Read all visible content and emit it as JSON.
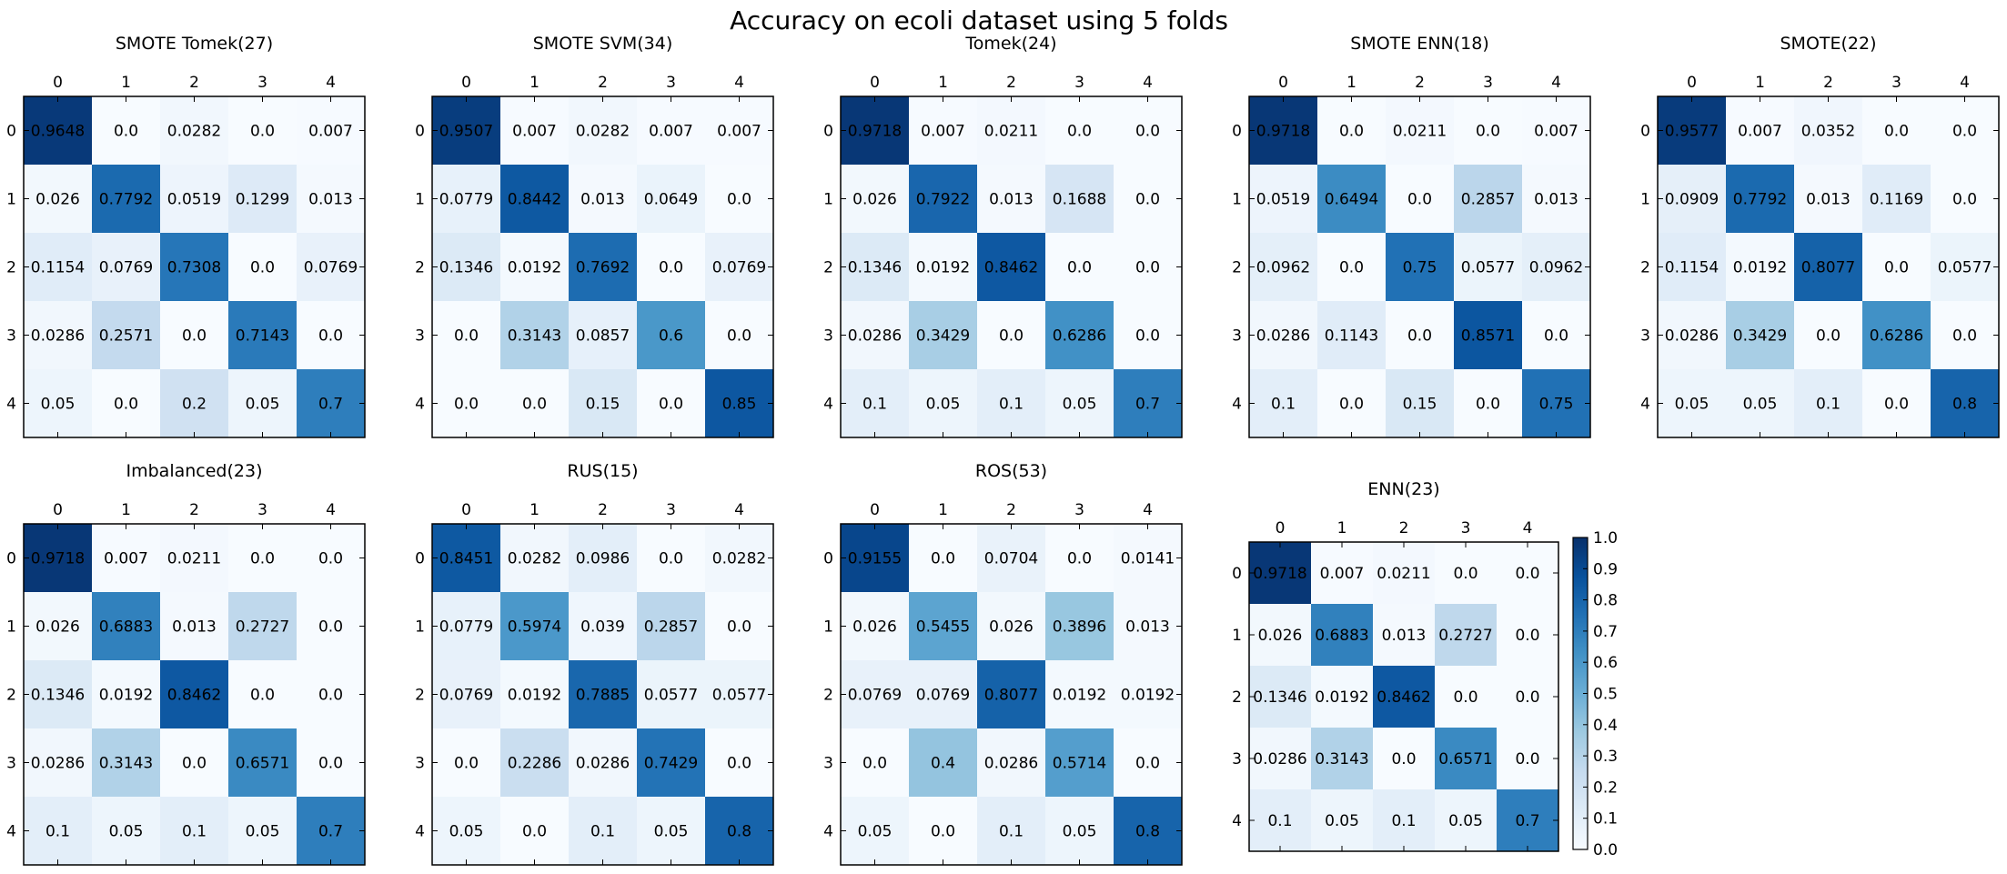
{
  "figure": {
    "title": "Accuracy on ecoli dataset using 5 folds"
  },
  "colormap": {
    "name": "Blues",
    "stops": [
      "#f7fbff",
      "#deebf7",
      "#c6dbef",
      "#9ecae1",
      "#6baed6",
      "#4292c6",
      "#2171b5",
      "#08519c",
      "#08306b"
    ]
  },
  "chart_data": [
    {
      "type": "heatmap",
      "title": "SMOTE Tomek(27)",
      "x_ticks": [
        "0",
        "1",
        "2",
        "3",
        "4"
      ],
      "y_ticks": [
        "0",
        "1",
        "2",
        "3",
        "4"
      ],
      "values": [
        [
          "0.9648",
          "0.0",
          "0.0282",
          "0.0",
          "0.007"
        ],
        [
          "0.026",
          "0.7792",
          "0.0519",
          "0.1299",
          "0.013"
        ],
        [
          "0.1154",
          "0.0769",
          "0.7308",
          "0.0",
          "0.0769"
        ],
        [
          "0.0286",
          "0.2571",
          "0.0",
          "0.7143",
          "0.0"
        ],
        [
          "0.05",
          "0.0",
          "0.2",
          "0.05",
          "0.7"
        ]
      ]
    },
    {
      "type": "heatmap",
      "title": "SMOTE SVM(34)",
      "x_ticks": [
        "0",
        "1",
        "2",
        "3",
        "4"
      ],
      "y_ticks": [
        "0",
        "1",
        "2",
        "3",
        "4"
      ],
      "values": [
        [
          "0.9507",
          "0.007",
          "0.0282",
          "0.007",
          "0.007"
        ],
        [
          "0.0779",
          "0.8442",
          "0.013",
          "0.0649",
          "0.0"
        ],
        [
          "0.1346",
          "0.0192",
          "0.7692",
          "0.0",
          "0.0769"
        ],
        [
          "0.0",
          "0.3143",
          "0.0857",
          "0.6",
          "0.0"
        ],
        [
          "0.0",
          "0.0",
          "0.15",
          "0.0",
          "0.85"
        ]
      ]
    },
    {
      "type": "heatmap",
      "title": "Tomek(24)",
      "x_ticks": [
        "0",
        "1",
        "2",
        "3",
        "4"
      ],
      "y_ticks": [
        "0",
        "1",
        "2",
        "3",
        "4"
      ],
      "values": [
        [
          "0.9718",
          "0.007",
          "0.0211",
          "0.0",
          "0.0"
        ],
        [
          "0.026",
          "0.7922",
          "0.013",
          "0.1688",
          "0.0"
        ],
        [
          "0.1346",
          "0.0192",
          "0.8462",
          "0.0",
          "0.0"
        ],
        [
          "0.0286",
          "0.3429",
          "0.0",
          "0.6286",
          "0.0"
        ],
        [
          "0.1",
          "0.05",
          "0.1",
          "0.05",
          "0.7"
        ]
      ]
    },
    {
      "type": "heatmap",
      "title": "SMOTE ENN(18)",
      "x_ticks": [
        "0",
        "1",
        "2",
        "3",
        "4"
      ],
      "y_ticks": [
        "0",
        "1",
        "2",
        "3",
        "4"
      ],
      "values": [
        [
          "0.9718",
          "0.0",
          "0.0211",
          "0.0",
          "0.007"
        ],
        [
          "0.0519",
          "0.6494",
          "0.0",
          "0.2857",
          "0.013"
        ],
        [
          "0.0962",
          "0.0",
          "0.75",
          "0.0577",
          "0.0962"
        ],
        [
          "0.0286",
          "0.1143",
          "0.0",
          "0.8571",
          "0.0"
        ],
        [
          "0.1",
          "0.0",
          "0.15",
          "0.0",
          "0.75"
        ]
      ]
    },
    {
      "type": "heatmap",
      "title": "SMOTE(22)",
      "x_ticks": [
        "0",
        "1",
        "2",
        "3",
        "4"
      ],
      "y_ticks": [
        "0",
        "1",
        "2",
        "3",
        "4"
      ],
      "values": [
        [
          "0.9577",
          "0.007",
          "0.0352",
          "0.0",
          "0.0"
        ],
        [
          "0.0909",
          "0.7792",
          "0.013",
          "0.1169",
          "0.0"
        ],
        [
          "0.1154",
          "0.0192",
          "0.8077",
          "0.0",
          "0.0577"
        ],
        [
          "0.0286",
          "0.3429",
          "0.0",
          "0.6286",
          "0.0"
        ],
        [
          "0.05",
          "0.05",
          "0.1",
          "0.0",
          "0.8"
        ]
      ]
    },
    {
      "type": "heatmap",
      "title": "Imbalanced(23)",
      "x_ticks": [
        "0",
        "1",
        "2",
        "3",
        "4"
      ],
      "y_ticks": [
        "0",
        "1",
        "2",
        "3",
        "4"
      ],
      "values": [
        [
          "0.9718",
          "0.007",
          "0.0211",
          "0.0",
          "0.0"
        ],
        [
          "0.026",
          "0.6883",
          "0.013",
          "0.2727",
          "0.0"
        ],
        [
          "0.1346",
          "0.0192",
          "0.8462",
          "0.0",
          "0.0"
        ],
        [
          "0.0286",
          "0.3143",
          "0.0",
          "0.6571",
          "0.0"
        ],
        [
          "0.1",
          "0.05",
          "0.1",
          "0.05",
          "0.7"
        ]
      ]
    },
    {
      "type": "heatmap",
      "title": "RUS(15)",
      "x_ticks": [
        "0",
        "1",
        "2",
        "3",
        "4"
      ],
      "y_ticks": [
        "0",
        "1",
        "2",
        "3",
        "4"
      ],
      "values": [
        [
          "0.8451",
          "0.0282",
          "0.0986",
          "0.0",
          "0.0282"
        ],
        [
          "0.0779",
          "0.5974",
          "0.039",
          "0.2857",
          "0.0"
        ],
        [
          "0.0769",
          "0.0192",
          "0.7885",
          "0.0577",
          "0.0577"
        ],
        [
          "0.0",
          "0.2286",
          "0.0286",
          "0.7429",
          "0.0"
        ],
        [
          "0.05",
          "0.0",
          "0.1",
          "0.05",
          "0.8"
        ]
      ]
    },
    {
      "type": "heatmap",
      "title": "ROS(53)",
      "x_ticks": [
        "0",
        "1",
        "2",
        "3",
        "4"
      ],
      "y_ticks": [
        "0",
        "1",
        "2",
        "3",
        "4"
      ],
      "values": [
        [
          "0.9155",
          "0.0",
          "0.0704",
          "0.0",
          "0.0141"
        ],
        [
          "0.026",
          "0.5455",
          "0.026",
          "0.3896",
          "0.013"
        ],
        [
          "0.0769",
          "0.0769",
          "0.8077",
          "0.0192",
          "0.0192"
        ],
        [
          "0.0",
          "0.4",
          "0.0286",
          "0.5714",
          "0.0"
        ],
        [
          "0.05",
          "0.0",
          "0.1",
          "0.05",
          "0.8"
        ]
      ]
    },
    {
      "type": "heatmap",
      "title": "ENN(23)",
      "x_ticks": [
        "0",
        "1",
        "2",
        "3",
        "4"
      ],
      "y_ticks": [
        "0",
        "1",
        "2",
        "3",
        "4"
      ],
      "values": [
        [
          "0.9718",
          "0.007",
          "0.0211",
          "0.0",
          "0.0"
        ],
        [
          "0.026",
          "0.6883",
          "0.013",
          "0.2727",
          "0.0"
        ],
        [
          "0.1346",
          "0.0192",
          "0.8462",
          "0.0",
          "0.0"
        ],
        [
          "0.0286",
          "0.3143",
          "0.0",
          "0.6571",
          "0.0"
        ],
        [
          "0.1",
          "0.05",
          "0.1",
          "0.05",
          "0.7"
        ]
      ],
      "colorbar": {
        "range": [
          0.0,
          1.0
        ],
        "ticks": [
          "0.0",
          "0.1",
          "0.2",
          "0.3",
          "0.4",
          "0.5",
          "0.6",
          "0.7",
          "0.8",
          "0.9",
          "1.0"
        ]
      }
    }
  ]
}
